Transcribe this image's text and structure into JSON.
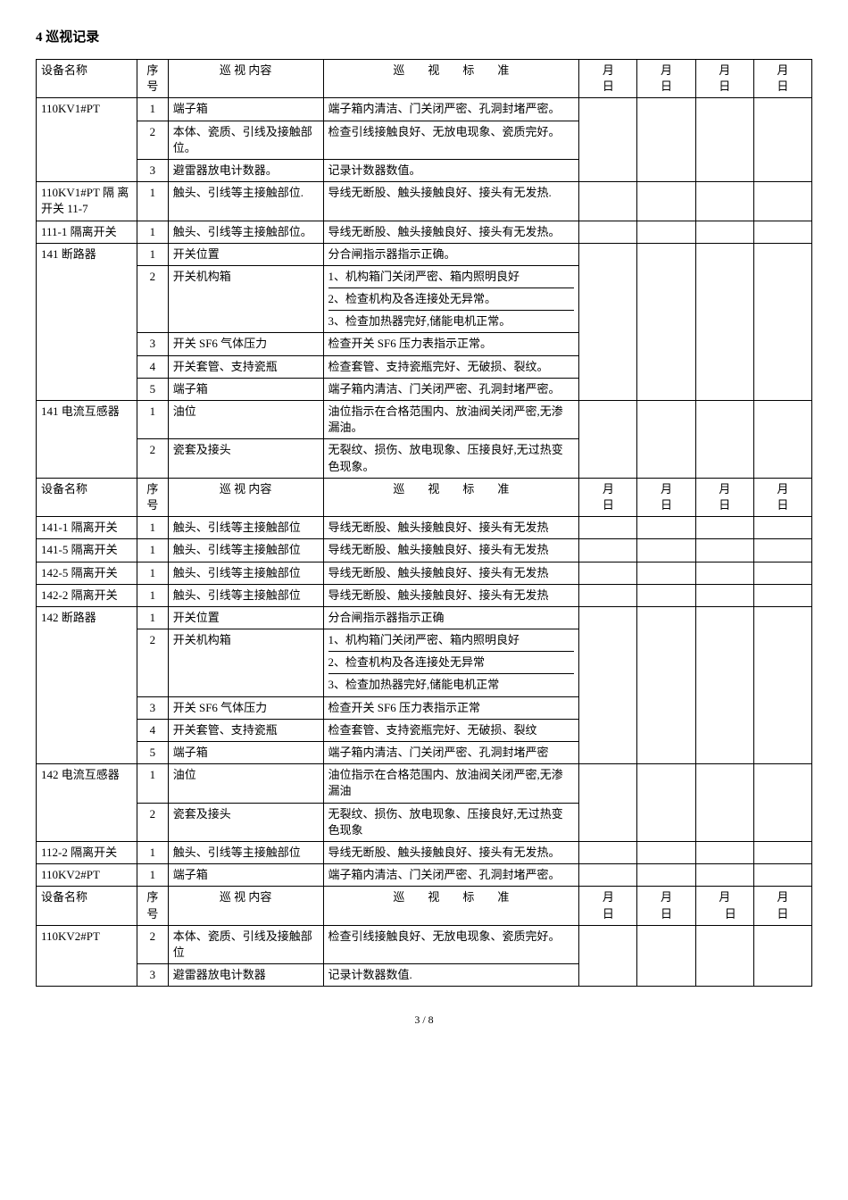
{
  "title": "4 巡视记录",
  "pager": "3 / 8",
  "headers": {
    "col_name": "设备名称",
    "col_seq": "序号",
    "col_content": "巡 视 内容",
    "col_standard_prefix": "巡",
    "col_standard_mid1": "视",
    "col_standard_mid2": "标",
    "col_standard_suffix": "准",
    "col_date_m": "月",
    "col_date_d": "日",
    "col_date_md": "月　日"
  },
  "groups": [
    {
      "header": true,
      "dates": [
        "月日",
        "月日",
        "月日",
        "月日"
      ],
      "rows": [
        {
          "name": "110KV1#PT",
          "name_span": 3,
          "seq": "1",
          "content": "端子箱",
          "standard": "端子箱内清洁、门关闭严密、孔洞封堵严密。"
        },
        {
          "seq": "2",
          "content": "本体、瓷质、引线及接触部位。",
          "standard": "检查引线接触良好、无放电现象、瓷质完好。"
        },
        {
          "seq": "3",
          "content": "避雷器放电计数器。",
          "standard": "记录计数器数值。"
        },
        {
          "name": "110KV1#PT 隔 离 开关 11-7",
          "name_span": 1,
          "seq": "1",
          "content": "触头、引线等主接触部位.",
          "standard": "导线无断股、触头接触良好、接头有无发热."
        },
        {
          "name": "111-1 隔离开关",
          "name_span": 1,
          "seq": "1",
          "content": "触头、引线等主接触部位。",
          "standard": "导线无断股、触头接触良好、接头有无发热。"
        },
        {
          "name": "141 断路器",
          "name_span": 5,
          "seq": "1",
          "content": "开关位置",
          "standard": "分合闸指示器指示正确。"
        },
        {
          "seq": "2",
          "content": "开关机构箱",
          "standard": "1、机构箱门关闭严密、箱内照明良好\n2、检查机构及各连接处无异常。\n3、检查加热器完好,储能电机正常。",
          "multi": true
        },
        {
          "seq": "3",
          "content": "开关 SF6 气体压力",
          "standard": "检查开关 SF6 压力表指示正常。"
        },
        {
          "seq": "4",
          "content": "开关套管、支持瓷瓶",
          "standard": "检查套管、支持瓷瓶完好、无破损、裂纹。"
        },
        {
          "seq": "5",
          "content": "端子箱",
          "standard": "端子箱内清洁、门关闭严密、孔洞封堵严密。"
        },
        {
          "name": "141 电流互感器",
          "name_span": 2,
          "seq": "1",
          "content": "油位",
          "standard": "油位指示在合格范围内、放油阀关闭严密,无渗漏油。"
        },
        {
          "seq": "2",
          "content": "瓷套及接头",
          "standard": "无裂纹、损伤、放电现象、压接良好,无过热变色现象。"
        }
      ]
    },
    {
      "header": true,
      "dates": [
        "月日",
        "月日",
        "月日",
        "月日"
      ],
      "rows": [
        {
          "name": "141-1 隔离开关",
          "name_span": 1,
          "seq": "1",
          "content": "触头、引线等主接触部位",
          "standard": "导线无断股、触头接触良好、接头有无发热"
        },
        {
          "name": "141-5 隔离开关",
          "name_span": 1,
          "seq": "1",
          "content": "触头、引线等主接触部位",
          "standard": "导线无断股、触头接触良好、接头有无发热"
        },
        {
          "name": "142-5 隔离开关",
          "name_span": 1,
          "seq": "1",
          "content": "触头、引线等主接触部位",
          "standard": "导线无断股、触头接触良好、接头有无发热"
        },
        {
          "name": "142-2 隔离开关",
          "name_span": 1,
          "seq": "1",
          "content": "触头、引线等主接触部位",
          "standard": "导线无断股、触头接触良好、接头有无发热"
        },
        {
          "name": "142 断路器",
          "name_span": 5,
          "seq": "1",
          "content": "开关位置",
          "standard": "分合闸指示器指示正确"
        },
        {
          "seq": "2",
          "content": "开关机构箱",
          "standard": "1、机构箱门关闭严密、箱内照明良好\n2、检查机构及各连接处无异常\n3、检查加热器完好,储能电机正常",
          "multi": true
        },
        {
          "seq": "3",
          "content": "开关 SF6 气体压力",
          "standard": "检查开关 SF6 压力表指示正常"
        },
        {
          "seq": "4",
          "content": "开关套管、支持瓷瓶",
          "standard": "检查套管、支持瓷瓶完好、无破损、裂纹"
        },
        {
          "seq": "5",
          "content": "端子箱",
          "standard": "端子箱内清洁、门关闭严密、孔洞封堵严密"
        },
        {
          "name": "142 电流互感器",
          "name_span": 2,
          "seq": "1",
          "content": "油位",
          "standard": "油位指示在合格范围内、放油阀关闭严密,无渗漏油"
        },
        {
          "seq": "2",
          "content": "瓷套及接头",
          "standard": "无裂纹、损伤、放电现象、压接良好,无过热变色现象"
        },
        {
          "name": "112-2 隔离开关",
          "name_span": 1,
          "seq": "1",
          "content": "触头、引线等主接触部位",
          "standard": "导线无断股、触头接触良好、接头有无发热。"
        },
        {
          "name": "110KV2#PT",
          "name_span": 1,
          "seq": "1",
          "content": "端子箱",
          "standard": "端子箱内清洁、门关闭严密、孔洞封堵严密。"
        }
      ]
    },
    {
      "header": true,
      "dates": [
        "月日",
        "月日",
        "月　日",
        "月日"
      ],
      "rows": [
        {
          "name": "110KV2#PT",
          "name_span": 2,
          "seq": "2",
          "content": "本体、瓷质、引线及接触部位",
          "standard": "检查引线接触良好、无放电现象、瓷质完好。"
        },
        {
          "seq": "3",
          "content": "避雷器放电计数器",
          "standard": "记录计数器数值."
        }
      ]
    }
  ]
}
